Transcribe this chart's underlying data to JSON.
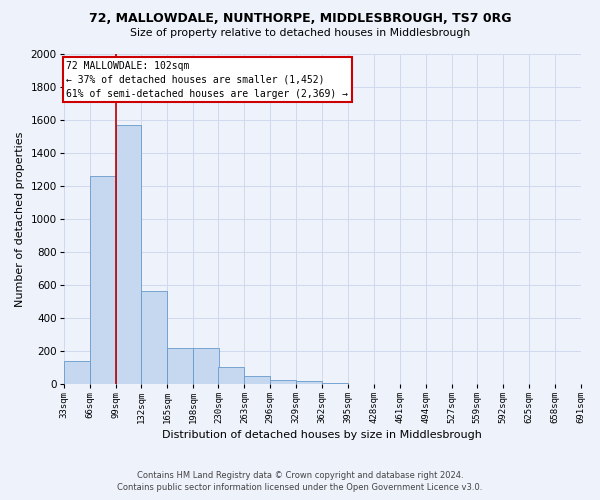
{
  "title": "72, MALLOWDALE, NUNTHORPE, MIDDLESBROUGH, TS7 0RG",
  "subtitle": "Size of property relative to detached houses in Middlesbrough",
  "xlabel": "Distribution of detached houses by size in Middlesbrough",
  "ylabel": "Number of detached properties",
  "footer_line1": "Contains HM Land Registry data © Crown copyright and database right 2024.",
  "footer_line2": "Contains public sector information licensed under the Open Government Licence v3.0.",
  "annotation_line1": "72 MALLOWDALE: 102sqm",
  "annotation_line2": "← 37% of detached houses are smaller (1,452)",
  "annotation_line3": "61% of semi-detached houses are larger (2,369) →",
  "bar_color": "#c5d8f0",
  "bar_edge_color": "#6699cc",
  "grid_color": "#d0daee",
  "background_color": "#eef2fb",
  "vline_color": "#bb0000",
  "annotation_box_color": "#ffffff",
  "annotation_box_edge": "#cc0000",
  "bins": [
    33,
    66,
    99,
    132,
    165,
    198,
    230,
    263,
    296,
    329,
    362,
    395,
    428,
    461,
    494,
    527,
    559,
    592,
    625,
    658,
    691
  ],
  "bin_labels": [
    "33sqm",
    "66sqm",
    "99sqm",
    "132sqm",
    "165sqm",
    "198sqm",
    "230sqm",
    "263sqm",
    "296sqm",
    "329sqm",
    "362sqm",
    "395sqm",
    "428sqm",
    "461sqm",
    "494sqm",
    "527sqm",
    "559sqm",
    "592sqm",
    "625sqm",
    "658sqm",
    "691sqm"
  ],
  "values": [
    140,
    1260,
    1570,
    565,
    220,
    220,
    100,
    50,
    25,
    15,
    8,
    0,
    0,
    0,
    0,
    0,
    0,
    0,
    0,
    0
  ],
  "vline_x": 99,
  "ylim": [
    0,
    2000
  ],
  "yticks": [
    0,
    200,
    400,
    600,
    800,
    1000,
    1200,
    1400,
    1600,
    1800,
    2000
  ]
}
